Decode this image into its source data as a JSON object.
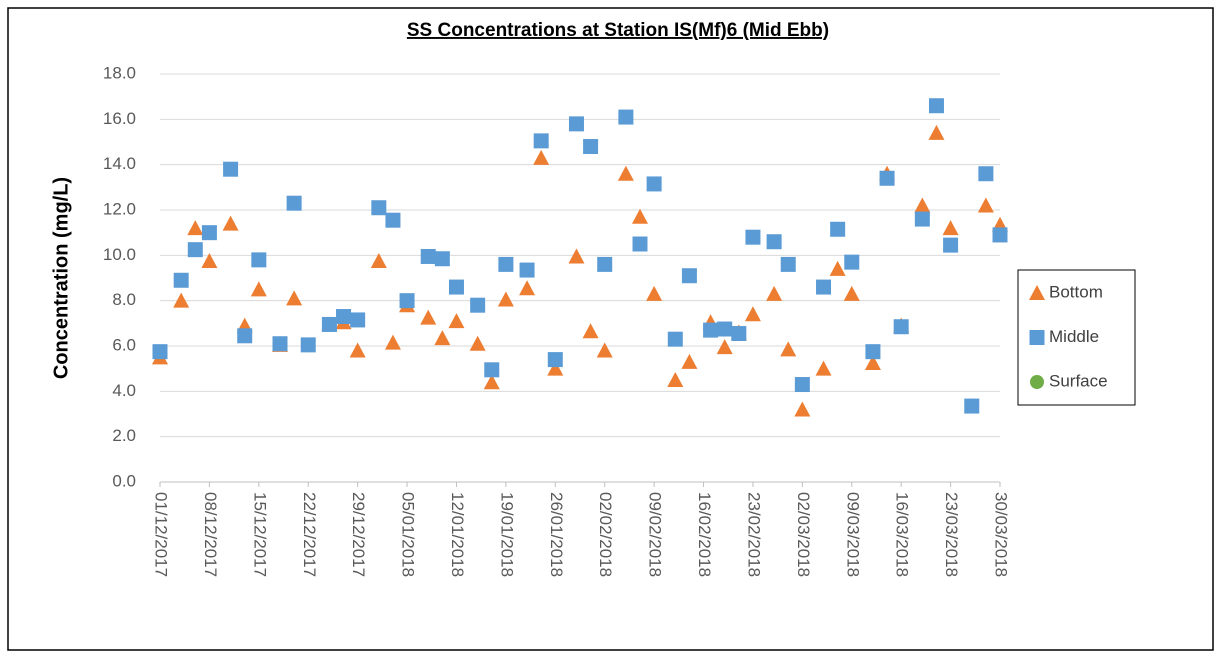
{
  "chart_data": {
    "type": "scatter",
    "title": "SS Concentrations at Station IS(Mf)6 (Mid Ebb)",
    "y_label": "Concentration (mg/L)",
    "x": [
      "01/12/2017",
      "04/12/2017",
      "06/12/2017",
      "08/12/2017",
      "11/12/2017",
      "13/12/2017",
      "15/12/2017",
      "18/12/2017",
      "20/12/2017",
      "22/12/2017",
      "25/12/2017",
      "27/12/2017",
      "29/12/2017",
      "01/01/2018",
      "03/01/2018",
      "05/01/2018",
      "08/01/2018",
      "10/01/2018",
      "12/01/2018",
      "15/01/2018",
      "17/01/2018",
      "19/01/2018",
      "22/01/2018",
      "24/01/2018",
      "26/01/2018",
      "29/01/2018",
      "31/01/2018",
      "02/02/2018",
      "05/02/2018",
      "07/02/2018",
      "09/02/2018",
      "12/02/2018",
      "14/02/2018",
      "17/02/2018",
      "19/02/2018",
      "21/02/2018",
      "23/02/2018",
      "26/02/2018",
      "28/02/2018",
      "02/03/2018",
      "05/03/2018",
      "07/03/2018",
      "09/03/2018",
      "12/03/2018",
      "14/03/2018",
      "16/03/2018",
      "19/03/2018",
      "21/03/2018",
      "23/03/2018",
      "26/03/2018",
      "28/03/2018",
      "30/03/2018"
    ],
    "series": [
      {
        "name": "Bottom",
        "color": "#ed7d31",
        "marker": "triangle",
        "values": [
          5.5,
          8.0,
          11.2,
          9.75,
          11.4,
          6.9,
          8.5,
          6.05,
          8.1,
          null,
          6.95,
          7.05,
          5.8,
          9.75,
          6.15,
          7.8,
          7.25,
          6.35,
          7.1,
          6.1,
          4.4,
          8.05,
          8.55,
          14.3,
          5.0,
          9.95,
          6.65,
          5.8,
          13.6,
          11.7,
          8.3,
          4.5,
          5.3,
          7.05,
          5.95,
          6.6,
          7.4,
          8.3,
          5.85,
          3.2,
          5.0,
          9.4,
          8.3,
          5.25,
          13.6,
          6.9,
          12.2,
          15.4,
          11.2,
          null,
          12.2,
          11.35
        ]
      },
      {
        "name": "Middle",
        "color": "#5b9bd5",
        "marker": "square",
        "values": [
          5.75,
          8.9,
          10.25,
          11.0,
          13.8,
          6.45,
          9.8,
          6.1,
          12.3,
          6.05,
          6.95,
          7.3,
          7.15,
          12.1,
          11.55,
          8.0,
          9.95,
          9.85,
          8.6,
          7.8,
          4.95,
          9.6,
          9.35,
          15.05,
          5.4,
          15.8,
          14.8,
          9.6,
          16.1,
          10.5,
          13.15,
          6.3,
          9.1,
          6.7,
          6.75,
          6.55,
          10.8,
          10.6,
          9.6,
          4.3,
          8.6,
          11.15,
          9.7,
          5.75,
          13.4,
          6.85,
          11.6,
          16.6,
          10.45,
          3.35,
          13.6,
          10.9
        ]
      },
      {
        "name": "Surface",
        "color": "#70ad47",
        "marker": "circle",
        "values": [
          null,
          null,
          null,
          null,
          null,
          null,
          null,
          null,
          null,
          null,
          null,
          null,
          null,
          null,
          null,
          null,
          null,
          null,
          null,
          null,
          null,
          null,
          null,
          null,
          null,
          null,
          null,
          null,
          null,
          null,
          null,
          null,
          null,
          null,
          null,
          null,
          null,
          null,
          null,
          null,
          null,
          null,
          null,
          null,
          null,
          null,
          null,
          null,
          null,
          null,
          null,
          null
        ]
      }
    ],
    "xlim": [
      "01/12/2017",
      "30/03/2018"
    ],
    "xticks": [
      "01/12/2017",
      "08/12/2017",
      "15/12/2017",
      "22/12/2017",
      "29/12/2017",
      "05/01/2018",
      "12/01/2018",
      "19/01/2018",
      "26/01/2018",
      "02/02/2018",
      "09/02/2018",
      "16/02/2018",
      "23/02/2018",
      "02/03/2018",
      "09/03/2018",
      "16/03/2018",
      "23/03/2018",
      "30/03/2018"
    ],
    "ylim": [
      0,
      18
    ],
    "yticks": [
      {
        "value": 0,
        "label": "0.0"
      },
      {
        "value": 2,
        "label": "2.0"
      },
      {
        "value": 4,
        "label": "4.0"
      },
      {
        "value": 6,
        "label": "6.0"
      },
      {
        "value": 8,
        "label": "8.0"
      },
      {
        "value": 10,
        "label": "10.0"
      },
      {
        "value": 12,
        "label": "12.0"
      },
      {
        "value": 14,
        "label": "14.0"
      },
      {
        "value": 16,
        "label": "16.0"
      },
      {
        "value": 18,
        "label": "18.0"
      }
    ],
    "grid": true,
    "legend": "right"
  }
}
